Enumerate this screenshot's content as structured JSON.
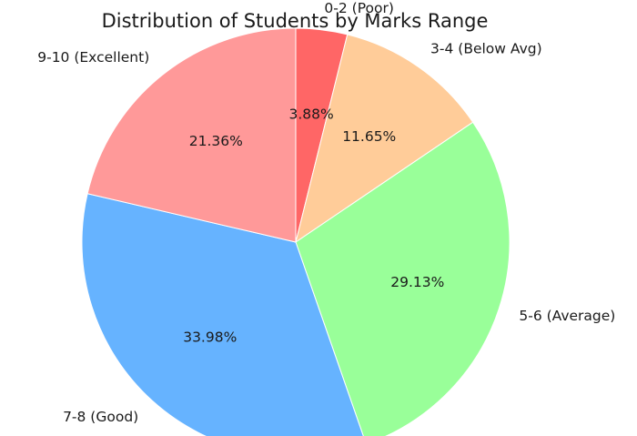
{
  "chart_data": {
    "type": "pie",
    "title": "Distribution of Students by Marks Range",
    "start_angle_deg": 90,
    "direction": "clockwise",
    "slices": [
      {
        "label": "0-2 (Poor)",
        "value": 3.88,
        "pct_label": "3.88%",
        "color": "#ff6666"
      },
      {
        "label": "3-4 (Below Avg)",
        "value": 11.65,
        "pct_label": "11.65%",
        "color": "#ffcc99"
      },
      {
        "label": "5-6 (Average)",
        "value": 29.13,
        "pct_label": "29.13%",
        "color": "#99ff99"
      },
      {
        "label": "7-8 (Good)",
        "value": 33.98,
        "pct_label": "33.98%",
        "color": "#66b3ff"
      },
      {
        "label": "9-10 (Excellent)",
        "value": 21.36,
        "pct_label": "21.36%",
        "color": "#ff9999"
      }
    ]
  }
}
